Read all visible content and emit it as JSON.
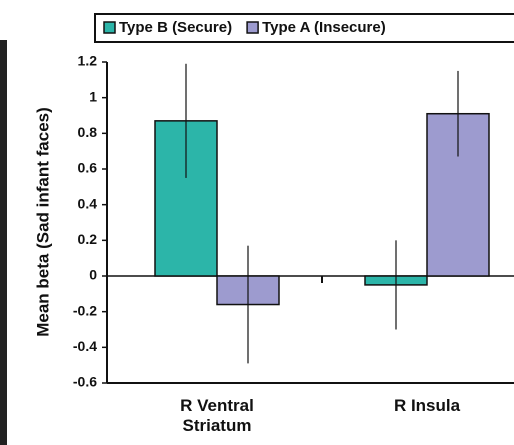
{
  "chart_data": {
    "type": "bar",
    "y_label": "Mean beta (Sad infant faces)",
    "categories": [
      "R Ventral Striatum",
      "R Insula"
    ],
    "series": [
      {
        "name": "Type B (Secure)",
        "color": "#2cb5a9",
        "values": [
          0.87,
          -0.05
        ],
        "errors": [
          0.32,
          0.25
        ]
      },
      {
        "name": "Type A (Insecure)",
        "color": "#9d9bcf",
        "values": [
          -0.16,
          0.91
        ],
        "errors": [
          0.33,
          0.24
        ]
      }
    ],
    "ylim": [
      -0.6,
      1.2
    ],
    "yticks": [
      -0.6,
      -0.4,
      -0.2,
      0,
      0.2,
      0.4,
      0.6,
      0.8,
      1,
      1.2
    ]
  }
}
